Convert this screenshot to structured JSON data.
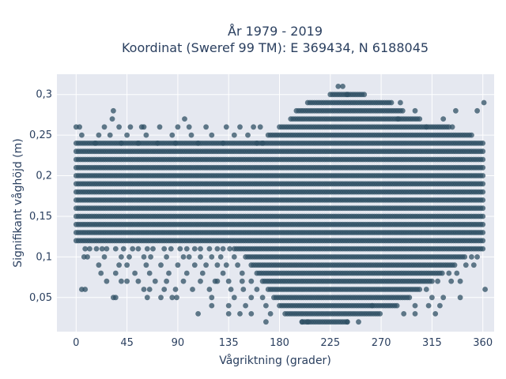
{
  "chart_data": {
    "type": "scatter",
    "title_lines": [
      "År 1979 - 2019",
      "Koordinat (Sweref 99 TM): E 369434, N 6188045"
    ],
    "xlabel": "Vågriktning (grader)",
    "ylabel": "Signifikant våghöjd (m)",
    "xlim": [
      -17,
      370
    ],
    "ylim": [
      0.008,
      0.325
    ],
    "xticks": [
      0,
      45,
      90,
      135,
      180,
      225,
      270,
      315,
      360
    ],
    "xtick_labels": [
      "0",
      "45",
      "90",
      "135",
      "180",
      "225",
      "270",
      "315",
      "360"
    ],
    "yticks": [
      0.05,
      0.1,
      0.15,
      0.2,
      0.25,
      0.3
    ],
    "ytick_labels": [
      "0,05",
      "0,1",
      "0,15",
      "0,2",
      "0,25",
      "0,3"
    ],
    "grid": true,
    "marker_color": "#2f5064",
    "plot_bg": "#e5e8f0",
    "dense_bands": [
      {
        "y": 0.12,
        "x": [
          0,
          360
        ]
      },
      {
        "y": 0.13,
        "x": [
          0,
          360
        ]
      },
      {
        "y": 0.14,
        "x": [
          0,
          360
        ]
      },
      {
        "y": 0.15,
        "x": [
          0,
          360
        ]
      },
      {
        "y": 0.16,
        "x": [
          0,
          360
        ]
      },
      {
        "y": 0.17,
        "x": [
          0,
          360
        ]
      },
      {
        "y": 0.18,
        "x": [
          0,
          360
        ]
      },
      {
        "y": 0.19,
        "x": [
          0,
          360
        ]
      },
      {
        "y": 0.2,
        "x": [
          0,
          360
        ]
      },
      {
        "y": 0.21,
        "x": [
          0,
          360
        ]
      },
      {
        "y": 0.22,
        "x": [
          0,
          360
        ]
      },
      {
        "y": 0.23,
        "x": [
          0,
          360
        ]
      },
      {
        "y": 0.24,
        "x": [
          0,
          360
        ]
      },
      {
        "y": 0.11,
        "x": [
          140,
          360
        ]
      },
      {
        "y": 0.1,
        "x": [
          150,
          345
        ]
      },
      {
        "y": 0.09,
        "x": [
          155,
          335
        ]
      },
      {
        "y": 0.08,
        "x": [
          160,
          325
        ]
      },
      {
        "y": 0.07,
        "x": [
          165,
          315
        ]
      },
      {
        "y": 0.06,
        "x": [
          170,
          305
        ]
      },
      {
        "y": 0.05,
        "x": [
          175,
          295
        ]
      },
      {
        "y": 0.04,
        "x": [
          180,
          285
        ]
      },
      {
        "y": 0.03,
        "x": [
          185,
          270
        ]
      },
      {
        "y": 0.02,
        "x": [
          200,
          240
        ]
      },
      {
        "y": 0.25,
        "x": [
          170,
          350
        ]
      },
      {
        "y": 0.26,
        "x": [
          180,
          330
        ]
      },
      {
        "y": 0.27,
        "x": [
          190,
          305
        ]
      },
      {
        "y": 0.28,
        "x": [
          195,
          290
        ]
      },
      {
        "y": 0.29,
        "x": [
          205,
          280
        ]
      },
      {
        "y": 0.3,
        "x": [
          225,
          255
        ]
      }
    ],
    "scatter_points": [
      [
        0,
        0.26
      ],
      [
        3,
        0.26
      ],
      [
        30,
        0.25
      ],
      [
        32,
        0.27
      ],
      [
        33,
        0.28
      ],
      [
        38,
        0.26
      ],
      [
        25,
        0.26
      ],
      [
        48,
        0.26
      ],
      [
        58,
        0.26
      ],
      [
        60,
        0.26
      ],
      [
        74,
        0.26
      ],
      [
        90,
        0.26
      ],
      [
        100,
        0.26
      ],
      [
        115,
        0.26
      ],
      [
        133,
        0.26
      ],
      [
        145,
        0.26
      ],
      [
        157,
        0.26
      ],
      [
        163,
        0.26
      ],
      [
        310,
        0.26
      ],
      [
        325,
        0.27
      ],
      [
        333,
        0.26
      ],
      [
        336,
        0.28
      ],
      [
        355,
        0.28
      ],
      [
        361,
        0.29
      ],
      [
        5,
        0.25
      ],
      [
        20,
        0.25
      ],
      [
        45,
        0.25
      ],
      [
        62,
        0.25
      ],
      [
        85,
        0.25
      ],
      [
        102,
        0.25
      ],
      [
        120,
        0.25
      ],
      [
        140,
        0.25
      ],
      [
        152,
        0.25
      ],
      [
        55,
        0.24
      ],
      [
        72,
        0.24
      ],
      [
        108,
        0.24
      ],
      [
        130,
        0.24
      ],
      [
        165,
        0.24
      ],
      [
        17,
        0.24
      ],
      [
        40,
        0.24
      ],
      [
        88,
        0.24
      ],
      [
        96,
        0.27
      ],
      [
        160,
        0.24
      ],
      [
        8,
        0.11
      ],
      [
        12,
        0.11
      ],
      [
        18,
        0.11
      ],
      [
        23,
        0.11
      ],
      [
        27,
        0.11
      ],
      [
        35,
        0.11
      ],
      [
        42,
        0.11
      ],
      [
        50,
        0.11
      ],
      [
        55,
        0.11
      ],
      [
        63,
        0.11
      ],
      [
        68,
        0.11
      ],
      [
        78,
        0.11
      ],
      [
        84,
        0.11
      ],
      [
        92,
        0.11
      ],
      [
        98,
        0.11
      ],
      [
        105,
        0.11
      ],
      [
        110,
        0.11
      ],
      [
        118,
        0.11
      ],
      [
        125,
        0.11
      ],
      [
        130,
        0.11
      ],
      [
        136,
        0.11
      ],
      [
        7,
        0.1
      ],
      [
        10,
        0.1
      ],
      [
        25,
        0.1
      ],
      [
        40,
        0.1
      ],
      [
        47,
        0.1
      ],
      [
        60,
        0.1
      ],
      [
        66,
        0.1
      ],
      [
        80,
        0.1
      ],
      [
        95,
        0.1
      ],
      [
        100,
        0.1
      ],
      [
        110,
        0.1
      ],
      [
        120,
        0.1
      ],
      [
        128,
        0.1
      ],
      [
        140,
        0.1
      ],
      [
        350,
        0.1
      ],
      [
        355,
        0.1
      ],
      [
        20,
        0.09
      ],
      [
        38,
        0.09
      ],
      [
        45,
        0.09
      ],
      [
        62,
        0.09
      ],
      [
        75,
        0.09
      ],
      [
        90,
        0.09
      ],
      [
        105,
        0.09
      ],
      [
        115,
        0.09
      ],
      [
        125,
        0.09
      ],
      [
        133,
        0.09
      ],
      [
        143,
        0.09
      ],
      [
        345,
        0.09
      ],
      [
        352,
        0.09
      ],
      [
        22,
        0.08
      ],
      [
        35,
        0.08
      ],
      [
        52,
        0.08
      ],
      [
        65,
        0.08
      ],
      [
        82,
        0.08
      ],
      [
        98,
        0.08
      ],
      [
        112,
        0.08
      ],
      [
        130,
        0.08
      ],
      [
        147,
        0.08
      ],
      [
        330,
        0.08
      ],
      [
        337,
        0.08
      ],
      [
        27,
        0.07
      ],
      [
        40,
        0.07
      ],
      [
        45,
        0.07
      ],
      [
        55,
        0.07
      ],
      [
        70,
        0.07
      ],
      [
        80,
        0.07
      ],
      [
        95,
        0.07
      ],
      [
        110,
        0.07
      ],
      [
        123,
        0.07
      ],
      [
        125,
        0.07
      ],
      [
        135,
        0.07
      ],
      [
        147,
        0.07
      ],
      [
        155,
        0.07
      ],
      [
        320,
        0.07
      ],
      [
        332,
        0.07
      ],
      [
        340,
        0.07
      ],
      [
        5,
        0.06
      ],
      [
        8,
        0.06
      ],
      [
        60,
        0.06
      ],
      [
        65,
        0.06
      ],
      [
        78,
        0.06
      ],
      [
        88,
        0.06
      ],
      [
        103,
        0.06
      ],
      [
        118,
        0.06
      ],
      [
        137,
        0.06
      ],
      [
        148,
        0.06
      ],
      [
        160,
        0.06
      ],
      [
        310,
        0.06
      ],
      [
        362,
        0.06
      ],
      [
        33,
        0.05
      ],
      [
        35,
        0.05
      ],
      [
        63,
        0.05
      ],
      [
        75,
        0.05
      ],
      [
        85,
        0.05
      ],
      [
        89,
        0.05
      ],
      [
        120,
        0.05
      ],
      [
        140,
        0.05
      ],
      [
        155,
        0.05
      ],
      [
        165,
        0.05
      ],
      [
        315,
        0.05
      ],
      [
        325,
        0.05
      ],
      [
        340,
        0.05
      ],
      [
        120,
        0.04
      ],
      [
        135,
        0.04
      ],
      [
        150,
        0.04
      ],
      [
        168,
        0.04
      ],
      [
        300,
        0.04
      ],
      [
        312,
        0.04
      ],
      [
        322,
        0.04
      ],
      [
        108,
        0.03
      ],
      [
        135,
        0.03
      ],
      [
        145,
        0.03
      ],
      [
        155,
        0.03
      ],
      [
        172,
        0.03
      ],
      [
        290,
        0.03
      ],
      [
        300,
        0.03
      ],
      [
        318,
        0.03
      ],
      [
        168,
        0.02
      ],
      [
        200,
        0.02
      ],
      [
        205,
        0.02
      ],
      [
        240,
        0.02
      ],
      [
        250,
        0.02
      ],
      [
        262,
        0.04
      ],
      [
        285,
        0.27
      ],
      [
        300,
        0.28
      ],
      [
        287,
        0.29
      ],
      [
        232,
        0.31
      ],
      [
        236,
        0.31
      ],
      [
        240,
        0.3
      ]
    ]
  }
}
